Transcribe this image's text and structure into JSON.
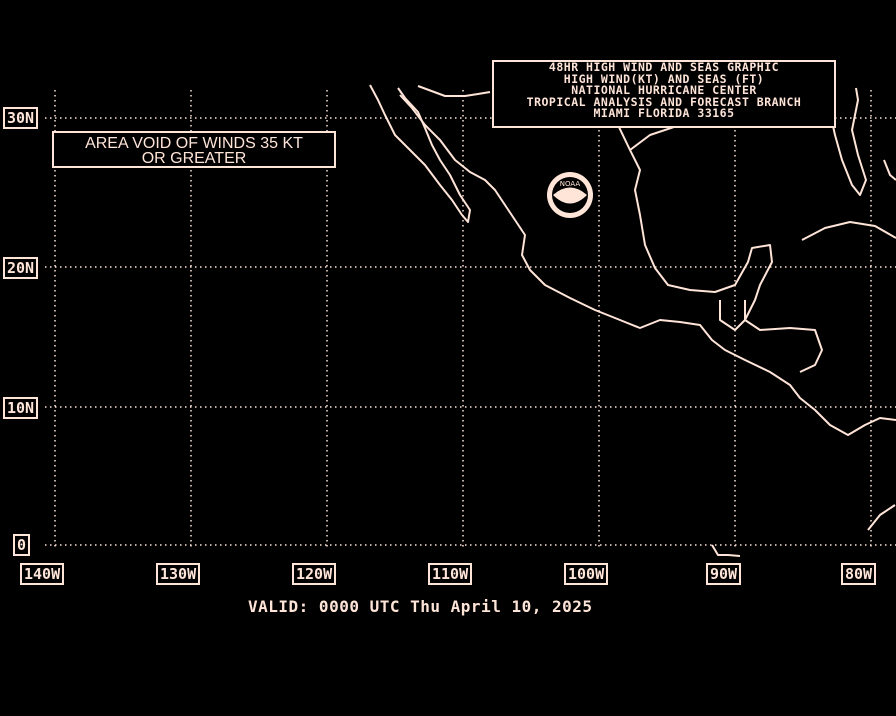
{
  "title_box": {
    "lines": [
      "48HR HIGH WIND AND SEAS GRAPHIC",
      "HIGH WIND(KT) AND SEAS (FT)",
      "NATIONAL HURRICANE CENTER",
      "TROPICAL ANALYSIS AND FORECAST BRANCH",
      "MIAMI FLORIDA  33165"
    ]
  },
  "notice": {
    "lines": [
      "AREA VOID OF WINDS 35 KT",
      "OR GREATER"
    ]
  },
  "latitude_labels": [
    "30N",
    "20N",
    "10N",
    "0"
  ],
  "longitude_labels": [
    "140W",
    "130W",
    "120W",
    "110W",
    "100W",
    "90W",
    "80W"
  ],
  "valid_time": "VALID: 0000 UTC Thu April 10, 2025",
  "logo": "NOAA",
  "colors": {
    "foreground": "#ffe4d8",
    "background": "#000000"
  }
}
